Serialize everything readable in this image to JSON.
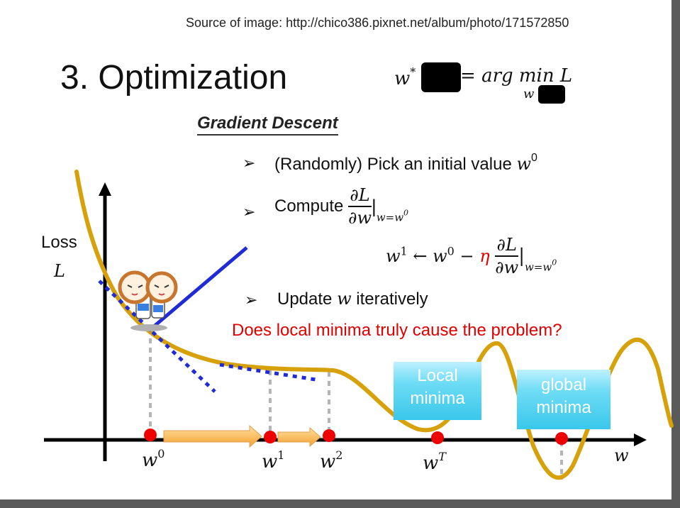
{
  "source": "Source of image: http://chico386.pixnet.net/album/photo/171572850",
  "title": "3. Optimization",
  "formula": {
    "lhs": "w",
    "lhs_sup": "*",
    "eq": "= ",
    "arg": "arg min",
    "rhs_var": "L",
    "under": "w"
  },
  "heading": "Gradient Descent",
  "bullets": {
    "b1_text": "(Randomly) Pick an initial value ",
    "b1_var": "w",
    "b1_sup": "0",
    "b2_text": "Compute ",
    "b2_num": "∂L",
    "b2_den": "∂w",
    "b2_eval": "|",
    "b2_sub": "w=w",
    "b2_sub_sup": "0",
    "b3_text": "Update ",
    "b3_var": "w",
    "b3_text2": " iteratively"
  },
  "update_rule": {
    "lhs": "w",
    "lhs_sup": "1",
    "arrow": " ← ",
    "w0": "w",
    "w0_sup": "0",
    "minus": " − ",
    "eta": "η",
    "num": "∂L",
    "den": "∂w",
    "eval": "|",
    "sub": "w=w",
    "sub_sup": "0"
  },
  "axis": {
    "y_label": "Loss",
    "y_symbol": "L",
    "x_symbol": "w"
  },
  "question": "Does local minima truly cause the problem?",
  "local_box": {
    "line1": "Local",
    "line2": "minima"
  },
  "global_box": {
    "line1": "global",
    "line2": "minima"
  },
  "points": [
    {
      "var": "w",
      "sup": "0"
    },
    {
      "var": "w",
      "sup": "1"
    },
    {
      "var": "w",
      "sup": "2"
    },
    {
      "var": "w",
      "sup": "T"
    }
  ],
  "colors": {
    "curve": "#d6a10a",
    "tangent_solid": "#1f2bd6",
    "tangent_dotted": "#1f2bd6",
    "point": "#ee0000",
    "arrow_fill": "#f6b24a",
    "question": "#e00000",
    "box": "#39c7eb"
  }
}
